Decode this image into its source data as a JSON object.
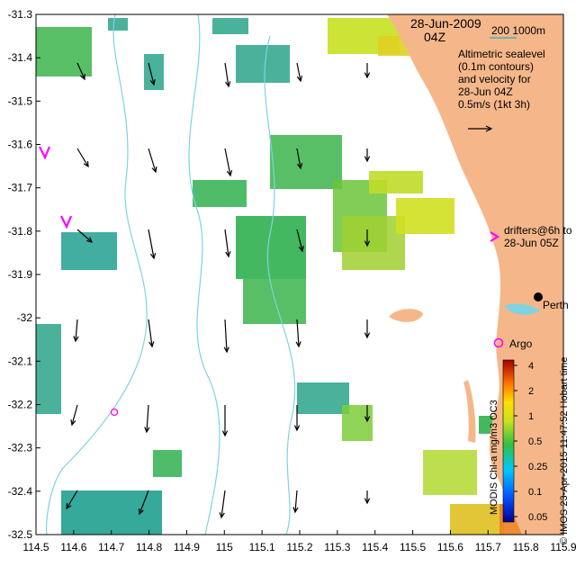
{
  "header": {
    "date": "28-Jun-2009",
    "time": "04Z",
    "scale_label": "200   1000m"
  },
  "legend": {
    "lines": [
      "Altimetric sealevel",
      "(0.1m contours)",
      "and velocity for",
      "28-Jun 04Z",
      "0.5m/s (1kt 3h)"
    ]
  },
  "drifters": {
    "label_line1": "drifters@6h to",
    "label_line2": "28-Jun 05Z"
  },
  "places": {
    "perth": "Perth",
    "argo": "Argo"
  },
  "credits": {
    "vertical_text": "© IMOS 23-Apr-2015 11:47:52 Hobart time"
  },
  "colorbar": {
    "title": "MODIS Chl-a mg/m3 OC3",
    "ticks": [
      "4",
      "2",
      "1",
      "0.5",
      "0.25",
      "0.1",
      "0.05"
    ]
  },
  "axes": {
    "x_ticks": [
      "114.5",
      "114.6",
      "114.7",
      "114.8",
      "114.9",
      "115",
      "115.1",
      "115.2",
      "115.3",
      "115.4",
      "115.5",
      "115.6",
      "115.7",
      "115.8",
      "115.9"
    ],
    "y_ticks": [
      "-31.3",
      "-31.4",
      "-31.5",
      "-31.6",
      "-31.7",
      "-31.8",
      "-31.9",
      "-32",
      "-32.1",
      "-32.2",
      "-32.3",
      "-32.4",
      "-32.5"
    ],
    "xlim": [
      114.5,
      115.9
    ],
    "ylim": [
      -32.5,
      -31.3
    ]
  },
  "colors": {
    "land": "#f5b78a",
    "contour": "#7fd3e0",
    "drifter": "#ff00ff",
    "chl_low": "#1f9e8f",
    "chl_mid": "#3cb44b",
    "chl_high": "#f0c020",
    "arrow": "#000000"
  }
}
